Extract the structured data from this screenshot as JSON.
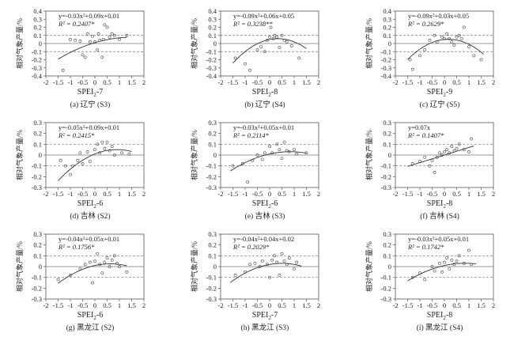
{
  "chart_data": [
    {
      "type": "scatter",
      "panel": "(a) 辽宁 (S3)",
      "xlabel": "SPEI",
      "xlabel_sub": "2",
      "xlabel_tail": "-7",
      "ylabel": "相对气象产量/%",
      "equation": "y=-0.03x²+0.09x+0.01",
      "r2_label": "R² = 0.2407*",
      "fit": {
        "a": -0.03,
        "b": 0.09,
        "c": 0.01
      },
      "xlim": [
        -2,
        2
      ],
      "ylim": [
        -0.4,
        0.4
      ],
      "xticks": [
        -2,
        -1.5,
        -1,
        -0.5,
        0,
        0.5,
        1,
        1.5,
        2
      ],
      "yticks": [
        -0.4,
        -0.3,
        -0.2,
        -0.1,
        0,
        0.1,
        0.2,
        0.3,
        0.4
      ],
      "ytick_labels": [
        "-0.4",
        "-0.3",
        "-0.2",
        "-0.1",
        "0",
        "0.1",
        "0.2",
        "0.3",
        "0.4"
      ],
      "ref_lines": [
        0.1,
        0,
        -0.1
      ],
      "points": [
        [
          -1.3,
          -0.33
        ],
        [
          -1.0,
          0.05
        ],
        [
          -0.8,
          0.04
        ],
        [
          -0.6,
          0.03
        ],
        [
          -0.5,
          -0.14
        ],
        [
          -0.4,
          -0.17
        ],
        [
          -0.3,
          0.12
        ],
        [
          -0.2,
          0.02
        ],
        [
          -0.1,
          0.09
        ],
        [
          0.0,
          0.02
        ],
        [
          0.1,
          -0.08
        ],
        [
          0.15,
          0.12
        ],
        [
          0.2,
          0.04
        ],
        [
          0.3,
          -0.17
        ],
        [
          0.35,
          0.05
        ],
        [
          0.4,
          0.23
        ],
        [
          0.5,
          0.2
        ],
        [
          0.6,
          0.08
        ],
        [
          0.7,
          0.12
        ],
        [
          0.8,
          0.1
        ],
        [
          1.0,
          0.05
        ],
        [
          1.3,
          0.1
        ]
      ],
      "fit_range": [
        -1.5,
        1.3
      ]
    },
    {
      "type": "scatter",
      "panel": "(b) 辽宁 (S4)",
      "xlabel": "SPEI",
      "xlabel_sub": "2",
      "xlabel_tail": "-8",
      "ylabel": "相对气象产量/%",
      "equation": "y=-0.09x²+0.06x+0.05",
      "r2_label": "R² = 0.3238**",
      "fit": {
        "a": -0.09,
        "b": 0.06,
        "c": 0.05
      },
      "xlim": [
        -2,
        2
      ],
      "ylim": [
        -0.4,
        0.4
      ],
      "xticks": [
        -2,
        -1.5,
        -1,
        -0.5,
        0,
        0.5,
        1,
        1.5,
        2
      ],
      "yticks": [
        -0.4,
        -0.3,
        -0.2,
        -0.1,
        0,
        0.1,
        0.2,
        0.3,
        0.4
      ],
      "ytick_labels": [
        "-0.4",
        "-0.3",
        "-0.2",
        "-0.1",
        "0",
        "0.1",
        "0.2",
        "0.3",
        "0.4"
      ],
      "ref_lines": [
        0.1,
        0,
        -0.1
      ],
      "points": [
        [
          -1.4,
          -0.18
        ],
        [
          -1.0,
          -0.25
        ],
        [
          -0.8,
          -0.33
        ],
        [
          -0.5,
          -0.08
        ],
        [
          -0.35,
          -0.04
        ],
        [
          -0.2,
          -0.1
        ],
        [
          -0.1,
          0.04
        ],
        [
          0.0,
          0.08
        ],
        [
          0.05,
          0.2
        ],
        [
          0.15,
          0.06
        ],
        [
          0.2,
          0.1
        ],
        [
          0.3,
          0.08
        ],
        [
          0.4,
          -0.05
        ],
        [
          0.5,
          0.1
        ],
        [
          0.6,
          0.04
        ],
        [
          0.7,
          0.02
        ],
        [
          0.9,
          -0.03
        ],
        [
          1.2,
          -0.18
        ]
      ],
      "fit_range": [
        -1.5,
        1.5
      ]
    },
    {
      "type": "scatter",
      "panel": "(c) 辽宁 (S5)",
      "xlabel": "SPEI",
      "xlabel_sub": "2",
      "xlabel_tail": "-9",
      "ylabel": "相对气象产量/%",
      "equation": "y=-0.09x²+0.03x+0.05",
      "r2_label": "R² = 0.2629*",
      "fit": {
        "a": -0.09,
        "b": 0.03,
        "c": 0.05
      },
      "xlim": [
        -2,
        2
      ],
      "ylim": [
        -0.4,
        0.4
      ],
      "xticks": [
        -2,
        -1.5,
        -1,
        -0.5,
        0,
        0.5,
        1,
        1.5,
        2
      ],
      "yticks": [
        -0.4,
        -0.3,
        -0.2,
        -0.1,
        0,
        0.1,
        0.2,
        0.3,
        0.4
      ],
      "ytick_labels": [
        "-0.4",
        "-0.3",
        "-0.2",
        "-0.1",
        "0",
        "0.1",
        "0.2",
        "0.3",
        "0.4"
      ],
      "ref_lines": [
        0.1,
        0,
        -0.1
      ],
      "points": [
        [
          -1.4,
          -0.2
        ],
        [
          -1.3,
          -0.32
        ],
        [
          -1.0,
          -0.15
        ],
        [
          -0.8,
          -0.08
        ],
        [
          -0.6,
          0.04
        ],
        [
          -0.4,
          0.1
        ],
        [
          -0.3,
          0.02
        ],
        [
          -0.1,
          0.08
        ],
        [
          0.0,
          0.06
        ],
        [
          0.1,
          0.12
        ],
        [
          0.2,
          0.06
        ],
        [
          0.3,
          0.02
        ],
        [
          0.4,
          -0.02
        ],
        [
          0.5,
          0.08
        ],
        [
          0.6,
          0.1
        ],
        [
          0.7,
          0.06
        ],
        [
          0.8,
          0.2
        ],
        [
          1.0,
          -0.04
        ],
        [
          1.2,
          -0.15
        ],
        [
          1.5,
          -0.2
        ]
      ],
      "fit_range": [
        -1.5,
        1.6
      ]
    },
    {
      "type": "scatter",
      "panel": "(d) 吉林 (S2)",
      "xlabel": "SPEI",
      "xlabel_sub": "2",
      "xlabel_tail": "-6",
      "ylabel": "相对气象产量/%",
      "equation": "y=-0.05x²+0.09x+0.01",
      "r2_label": "R² = 0.2415*",
      "fit": {
        "a": -0.05,
        "b": 0.09,
        "c": 0.01
      },
      "xlim": [
        -2,
        2
      ],
      "ylim": [
        -0.3,
        0.3
      ],
      "xticks": [
        -2,
        -1.5,
        -1,
        -0.5,
        0,
        0.5,
        1,
        1.5,
        2
      ],
      "yticks": [
        -0.3,
        -0.2,
        -0.1,
        0,
        0.1,
        0.2,
        0.3
      ],
      "ytick_labels": [
        "-0.3",
        "-0.2",
        "-0.1",
        "0",
        "0.1",
        "0.2",
        "0.3"
      ],
      "ref_lines": [
        0.1,
        0,
        -0.1
      ],
      "points": [
        [
          -1.4,
          -0.05
        ],
        [
          -1.2,
          -0.1
        ],
        [
          -1.0,
          -0.18
        ],
        [
          -0.9,
          -0.1
        ],
        [
          -0.7,
          -0.05
        ],
        [
          -0.6,
          0.02
        ],
        [
          -0.5,
          -0.08
        ],
        [
          -0.3,
          0.03
        ],
        [
          -0.2,
          -0.06
        ],
        [
          0.0,
          0.05
        ],
        [
          0.1,
          0.1
        ],
        [
          0.2,
          0.02
        ],
        [
          0.3,
          0.12
        ],
        [
          0.4,
          0.06
        ],
        [
          0.5,
          0.12
        ],
        [
          0.6,
          0.04
        ],
        [
          0.7,
          0.08
        ],
        [
          0.8,
          0.0
        ],
        [
          1.1,
          0.02
        ],
        [
          1.4,
          0.01
        ]
      ],
      "fit_range": [
        -1.5,
        1.5
      ]
    },
    {
      "type": "scatter",
      "panel": "(e) 吉林 (S3)",
      "xlabel": "SPEI",
      "xlabel_sub": "2",
      "xlabel_tail": "-6",
      "ylabel": "相对气象产量/%",
      "equation": "y=-0.03x²+0.05x+0.01",
      "r2_label": "R² = 0.2114*",
      "fit": {
        "a": -0.03,
        "b": 0.05,
        "c": 0.01
      },
      "xlim": [
        -2,
        2
      ],
      "ylim": [
        -0.3,
        0.3
      ],
      "xticks": [
        -2,
        -1.5,
        -1,
        -0.5,
        0,
        0.5,
        1,
        1.5,
        2
      ],
      "yticks": [
        -0.3,
        -0.2,
        -0.1,
        0,
        0.1,
        0.2,
        0.3
      ],
      "ytick_labels": [
        "-0.3",
        "-0.2",
        "-0.1",
        "0",
        "0.1",
        "0.2",
        "0.3"
      ],
      "ref_lines": [
        0.1,
        0,
        -0.1
      ],
      "points": [
        [
          -1.5,
          -0.1
        ],
        [
          -1.1,
          -0.08
        ],
        [
          -0.9,
          -0.25
        ],
        [
          -0.7,
          -0.05
        ],
        [
          -0.5,
          0.0
        ],
        [
          -0.3,
          -0.04
        ],
        [
          -0.2,
          0.02
        ],
        [
          0.0,
          0.08
        ],
        [
          0.1,
          0.02
        ],
        [
          0.3,
          0.1
        ],
        [
          0.4,
          0.05
        ],
        [
          0.5,
          -0.03
        ],
        [
          0.6,
          0.12
        ],
        [
          0.7,
          0.04
        ],
        [
          0.8,
          0.03
        ],
        [
          1.0,
          0.05
        ],
        [
          1.1,
          0.01
        ],
        [
          1.5,
          0.02
        ]
      ],
      "fit_range": [
        -1.6,
        1.5
      ]
    },
    {
      "type": "scatter",
      "panel": "(f) 吉林 (S4)",
      "xlabel": "SPEI",
      "xlabel_sub": "2",
      "xlabel_tail": "-8",
      "ylabel": "相对气象产量/%",
      "equation": "y=0.07x",
      "r2_label": "R² = 0.1407*",
      "fit": {
        "a": 0,
        "b": 0.07,
        "c": 0
      },
      "xlim": [
        -2,
        2
      ],
      "ylim": [
        -0.3,
        0.3
      ],
      "xticks": [
        -2,
        -1.5,
        -1,
        -0.5,
        0,
        0.5,
        1,
        1.5,
        2
      ],
      "yticks": [
        -0.3,
        -0.2,
        -0.1,
        0,
        0.1,
        0.2,
        0.3
      ],
      "ytick_labels": [
        "-0.3",
        "-0.2",
        "-0.1",
        "0",
        "0.1",
        "0.2",
        "0.3"
      ],
      "ref_lines": [
        0.1,
        0,
        -0.1
      ],
      "points": [
        [
          -1.3,
          -0.08
        ],
        [
          -1.0,
          -0.06
        ],
        [
          -0.8,
          -0.02
        ],
        [
          -0.6,
          -0.1
        ],
        [
          -0.5,
          -0.05
        ],
        [
          -0.4,
          -0.16
        ],
        [
          -0.3,
          -0.02
        ],
        [
          -0.2,
          0.02
        ],
        [
          -0.1,
          0.0
        ],
        [
          0.0,
          0.03
        ],
        [
          0.1,
          0.05
        ],
        [
          0.2,
          0.02
        ],
        [
          0.3,
          0.08
        ],
        [
          0.4,
          0.04
        ],
        [
          0.5,
          0.06
        ],
        [
          0.6,
          0.1
        ],
        [
          0.8,
          0.05
        ],
        [
          1.0,
          0.03
        ],
        [
          1.1,
          0.15
        ]
      ],
      "fit_range": [
        -1.5,
        1.2
      ]
    },
    {
      "type": "scatter",
      "panel": "(g) 黑龙江 (S2)",
      "xlabel": "SPEI",
      "xlabel_sub": "2",
      "xlabel_tail": "-6",
      "ylabel": "相对气象产量/%",
      "equation": "y=-0.04x²+0.05x+0.01",
      "r2_label": "R² = 0.1756*",
      "fit": {
        "a": -0.04,
        "b": 0.05,
        "c": 0.01
      },
      "xlim": [
        -2,
        2
      ],
      "ylim": [
        -0.3,
        0.3
      ],
      "xticks": [
        -2,
        -1.5,
        -1,
        -0.5,
        0,
        0.5,
        1,
        1.5,
        2
      ],
      "yticks": [
        -0.3,
        -0.2,
        -0.1,
        0,
        0.1,
        0.2,
        0.3
      ],
      "ytick_labels": [
        "-0.3",
        "-0.2",
        "-0.1",
        "0",
        "0.1",
        "0.2",
        "0.3"
      ],
      "ref_lines": [
        0.1,
        0,
        -0.1
      ],
      "points": [
        [
          -1.5,
          -0.12
        ],
        [
          -1.0,
          -0.08
        ],
        [
          -0.6,
          -0.02
        ],
        [
          -0.4,
          0.02
        ],
        [
          -0.2,
          0.04
        ],
        [
          -0.1,
          -0.15
        ],
        [
          0.0,
          0.05
        ],
        [
          0.1,
          0.12
        ],
        [
          0.2,
          0.02
        ],
        [
          0.3,
          -0.06
        ],
        [
          0.4,
          0.04
        ],
        [
          0.5,
          0.08
        ],
        [
          0.6,
          0.0
        ],
        [
          0.7,
          0.06
        ],
        [
          0.8,
          0.1
        ],
        [
          0.9,
          0.03
        ],
        [
          1.0,
          0.0
        ],
        [
          1.3,
          -0.05
        ]
      ],
      "fit_range": [
        -1.5,
        1.3
      ]
    },
    {
      "type": "scatter",
      "panel": "(h) 黑龙江 (S3)",
      "xlabel": "SPEI",
      "xlabel_sub": "2",
      "xlabel_tail": "-7",
      "ylabel": "相对气象产量/%",
      "equation": "y=-0.04x²+0.04x+0.02",
      "r2_label": "R² = 0.2029*",
      "fit": {
        "a": -0.04,
        "b": 0.04,
        "c": 0.02
      },
      "xlim": [
        -2,
        2
      ],
      "ylim": [
        -0.3,
        0.3
      ],
      "xticks": [
        -2,
        -1.5,
        -1,
        -0.5,
        0,
        0.5,
        1,
        1.5,
        2
      ],
      "yticks": [
        -0.3,
        -0.2,
        -0.1,
        0,
        0.1,
        0.2,
        0.3
      ],
      "ytick_labels": [
        "-0.3",
        "-0.2",
        "-0.1",
        "0",
        "0.1",
        "0.2",
        "0.3"
      ],
      "ref_lines": [
        0.1,
        0,
        -0.1
      ],
      "points": [
        [
          -1.4,
          -0.08
        ],
        [
          -1.0,
          -0.05
        ],
        [
          -0.8,
          0.02
        ],
        [
          -0.6,
          0.03
        ],
        [
          -0.4,
          0.0
        ],
        [
          -0.3,
          0.05
        ],
        [
          -0.1,
          0.02
        ],
        [
          0.0,
          -0.1
        ],
        [
          0.1,
          0.06
        ],
        [
          0.2,
          0.1
        ],
        [
          0.3,
          0.04
        ],
        [
          0.4,
          -0.08
        ],
        [
          0.5,
          0.12
        ],
        [
          0.6,
          0.05
        ],
        [
          0.7,
          0.02
        ],
        [
          0.8,
          0.08
        ],
        [
          1.0,
          -0.02
        ],
        [
          1.1,
          0.04
        ]
      ],
      "fit_range": [
        -1.6,
        1.3
      ]
    },
    {
      "type": "scatter",
      "panel": "(i) 黑龙江 (S4)",
      "xlabel": "SPEI",
      "xlabel_sub": "2",
      "xlabel_tail": "-8",
      "ylabel": "相对气象产量/%",
      "equation": "y=-0.03x²+0.05x+0.01",
      "r2_label": "R² = 0.1742*",
      "fit": {
        "a": -0.03,
        "b": 0.05,
        "c": 0.01
      },
      "xlim": [
        -2,
        2
      ],
      "ylim": [
        -0.3,
        0.3
      ],
      "xticks": [
        -2,
        -1.5,
        -1,
        -0.5,
        0,
        0.5,
        1,
        1.5,
        2
      ],
      "yticks": [
        -0.3,
        -0.2,
        -0.1,
        0,
        0.1,
        0.2,
        0.3
      ],
      "ytick_labels": [
        "-0.3",
        "-0.2",
        "-0.1",
        "0",
        "0.1",
        "0.2",
        "0.3"
      ],
      "ref_lines": [
        0.1,
        0,
        -0.1
      ],
      "points": [
        [
          -1.3,
          -0.1
        ],
        [
          -1.0,
          -0.06
        ],
        [
          -0.8,
          -0.12
        ],
        [
          -0.5,
          0.0
        ],
        [
          -0.4,
          -0.04
        ],
        [
          -0.2,
          0.03
        ],
        [
          -0.1,
          -0.05
        ],
        [
          0.0,
          0.04
        ],
        [
          0.1,
          0.08
        ],
        [
          0.2,
          -0.02
        ],
        [
          0.3,
          0.06
        ],
        [
          0.4,
          0.02
        ],
        [
          0.5,
          0.05
        ],
        [
          0.6,
          0.1
        ],
        [
          0.8,
          0.03
        ],
        [
          1.0,
          0.15
        ],
        [
          1.1,
          0.02
        ]
      ],
      "fit_range": [
        -1.5,
        1.3
      ]
    }
  ]
}
